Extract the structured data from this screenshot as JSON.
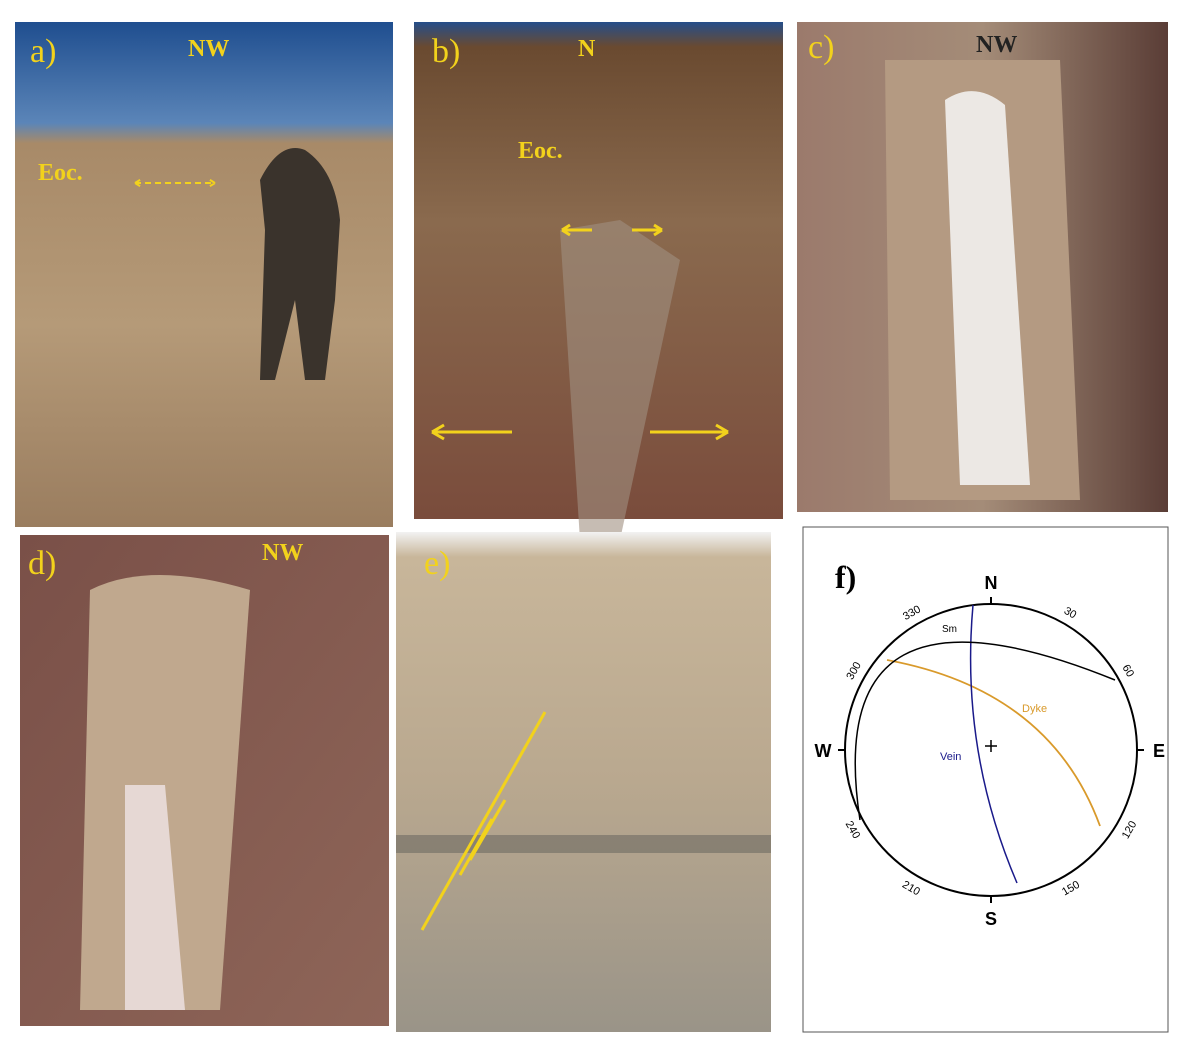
{
  "panels": [
    {
      "label": "a)",
      "annotations": [
        "NW",
        "Eoc."
      ]
    },
    {
      "label": "b)",
      "annotations": [
        "N",
        "Eoc."
      ]
    },
    {
      "label": "c)",
      "annotations": [
        "NW"
      ]
    },
    {
      "label": "d)",
      "annotations": [
        "NW"
      ]
    },
    {
      "label": "e)",
      "annotations": []
    }
  ],
  "stereonet": {
    "label": "f)",
    "directions": [
      "N",
      "E",
      "S",
      "W"
    ],
    "degree_labels": [
      "30",
      "60",
      "120",
      "150",
      "210",
      "240",
      "300",
      "330"
    ],
    "curve_labels": [
      "Sm",
      "Dyke",
      "Vein"
    ]
  }
}
